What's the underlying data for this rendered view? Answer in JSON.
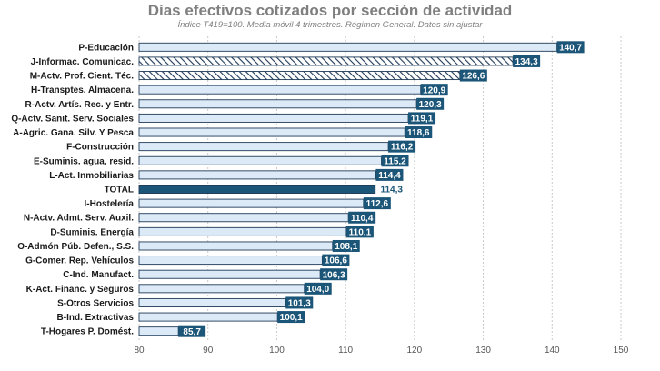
{
  "chart_data": {
    "type": "bar",
    "orientation": "horizontal",
    "title": "Días efectivos cotizados por sección de actividad",
    "subtitle": "Índice T419=100. Media móvil 4 trimestres. Régimen General. Datos sin ajustar",
    "xlim": [
      80,
      150
    ],
    "xticks": [
      80,
      90,
      100,
      110,
      120,
      130,
      140,
      150
    ],
    "grid": "vertical-dashed",
    "categories": [
      "P-Educación",
      "J-Informac. Comunicac.",
      "M-Actv. Prof. Cient. Téc.",
      "H-Transptes. Almacena.",
      "R-Actv. Artís. Rec. y Entr.",
      "Q-Actv. Sanit. Serv. Sociales",
      "A-Agric. Gana. Silv. Y Pesca",
      "F-Construcción",
      "E-Suminis. agua, resid.",
      "L-Act. Inmobiliarias",
      "TOTAL",
      "I-Hostelería",
      "N-Actv. Admt. Serv. Auxil.",
      "D-Suminis. Energía",
      "O-Admón Púb. Defen., S.S.",
      "G-Comer. Rep. Vehículos",
      "C-Ind. Manufact.",
      "K-Act. Financ. y Seguros",
      "S-Otros Servicios",
      "B-Ind. Extractivas",
      "T-Hogares P. Domést."
    ],
    "values": [
      140.7,
      134.3,
      126.6,
      120.9,
      120.3,
      119.1,
      118.6,
      116.2,
      115.2,
      114.4,
      114.3,
      112.6,
      110.4,
      110.1,
      108.1,
      106.6,
      106.3,
      104.0,
      101.3,
      100.1,
      85.7
    ],
    "value_labels": [
      "140,7",
      "134,3",
      "126,6",
      "120,9",
      "120,3",
      "119,1",
      "118,6",
      "116,2",
      "115,2",
      "114,4",
      "114,3",
      "112,6",
      "110,4",
      "110,1",
      "108,1",
      "106,6",
      "106,3",
      "104,0",
      "101,3",
      "100,1",
      "85,7"
    ],
    "styles": [
      "solid",
      "hatched",
      "hatched",
      "solid",
      "solid",
      "solid",
      "solid",
      "solid",
      "solid",
      "solid",
      "total",
      "solid",
      "solid",
      "solid",
      "solid",
      "solid",
      "solid",
      "solid",
      "solid",
      "solid",
      "solid"
    ],
    "colors": {
      "bar_fill": "#dce9f7",
      "bar_edge": "#1f3a58",
      "total_fill": "#1b5578",
      "label_bg": "#1b5578",
      "label_text": "#ffffff",
      "hatch": "#1f3a58",
      "grid": "#c8c8c8",
      "axis_text": "#555555"
    }
  }
}
